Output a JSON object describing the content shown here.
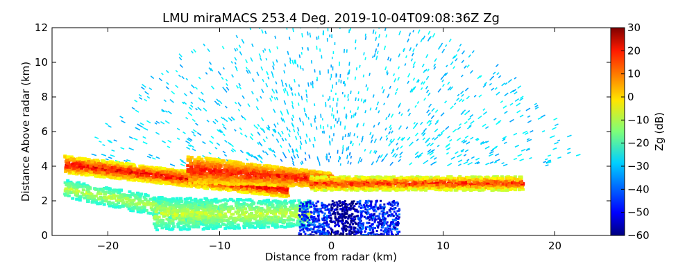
{
  "chart_data": {
    "type": "heatmap",
    "title": "LMU miraMACS 253.4 Deg. 2019-10-04T09:08:36Z  Zg",
    "xlabel": "Distance from radar (km)",
    "ylabel": "Distance Above radar  (km)",
    "xlim": [
      -25,
      25
    ],
    "ylim": [
      0,
      12
    ],
    "xticks": [
      -20,
      -10,
      0,
      10,
      20
    ],
    "yticks": [
      0,
      2,
      4,
      6,
      8,
      10,
      12
    ],
    "grid": false,
    "colorbar": {
      "label": "Zg (dB)",
      "range": [
        -60,
        30
      ],
      "ticks": [
        30,
        20,
        10,
        0,
        -10,
        -20,
        -30,
        -40,
        -50,
        -60
      ],
      "colormap": "jet"
    },
    "features": [
      {
        "name": "low-level melting-layer band",
        "x_range": [
          -24,
          17
        ],
        "height_km": [
          2.5,
          4.2
        ],
        "zg_db": [
          0,
          25
        ]
      },
      {
        "name": "upper-level sparse echoes",
        "x_range": [
          -22,
          23
        ],
        "height_km": [
          4,
          12
        ],
        "zg_db": [
          -35,
          -25
        ]
      },
      {
        "name": "near-radar weak echoes",
        "x_range": [
          -3,
          6
        ],
        "height_km": [
          0,
          2
        ],
        "zg_db": [
          -60,
          -40
        ]
      }
    ]
  }
}
